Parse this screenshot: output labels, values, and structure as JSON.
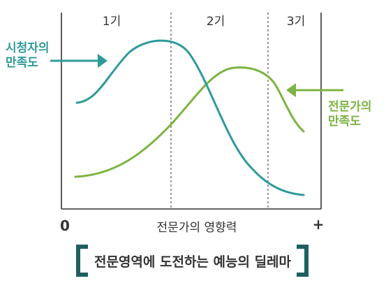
{
  "phases": [
    "1기",
    "2기",
    "3기"
  ],
  "viewer_satisfaction": [
    "시청자의",
    "만족도"
  ],
  "expert_satisfaction": [
    "전문가의",
    "만족도"
  ],
  "x_axis": {
    "start": "0",
    "end": "+",
    "title": "전문가의 영향력"
  },
  "caption": "전문영역에 도전하는 예능의 딜레마",
  "colors": {
    "viewer_curve": "#2e9a9a",
    "expert_curve": "#7cb342",
    "axis": "#333333",
    "bracket": "#1f5f5f"
  }
}
